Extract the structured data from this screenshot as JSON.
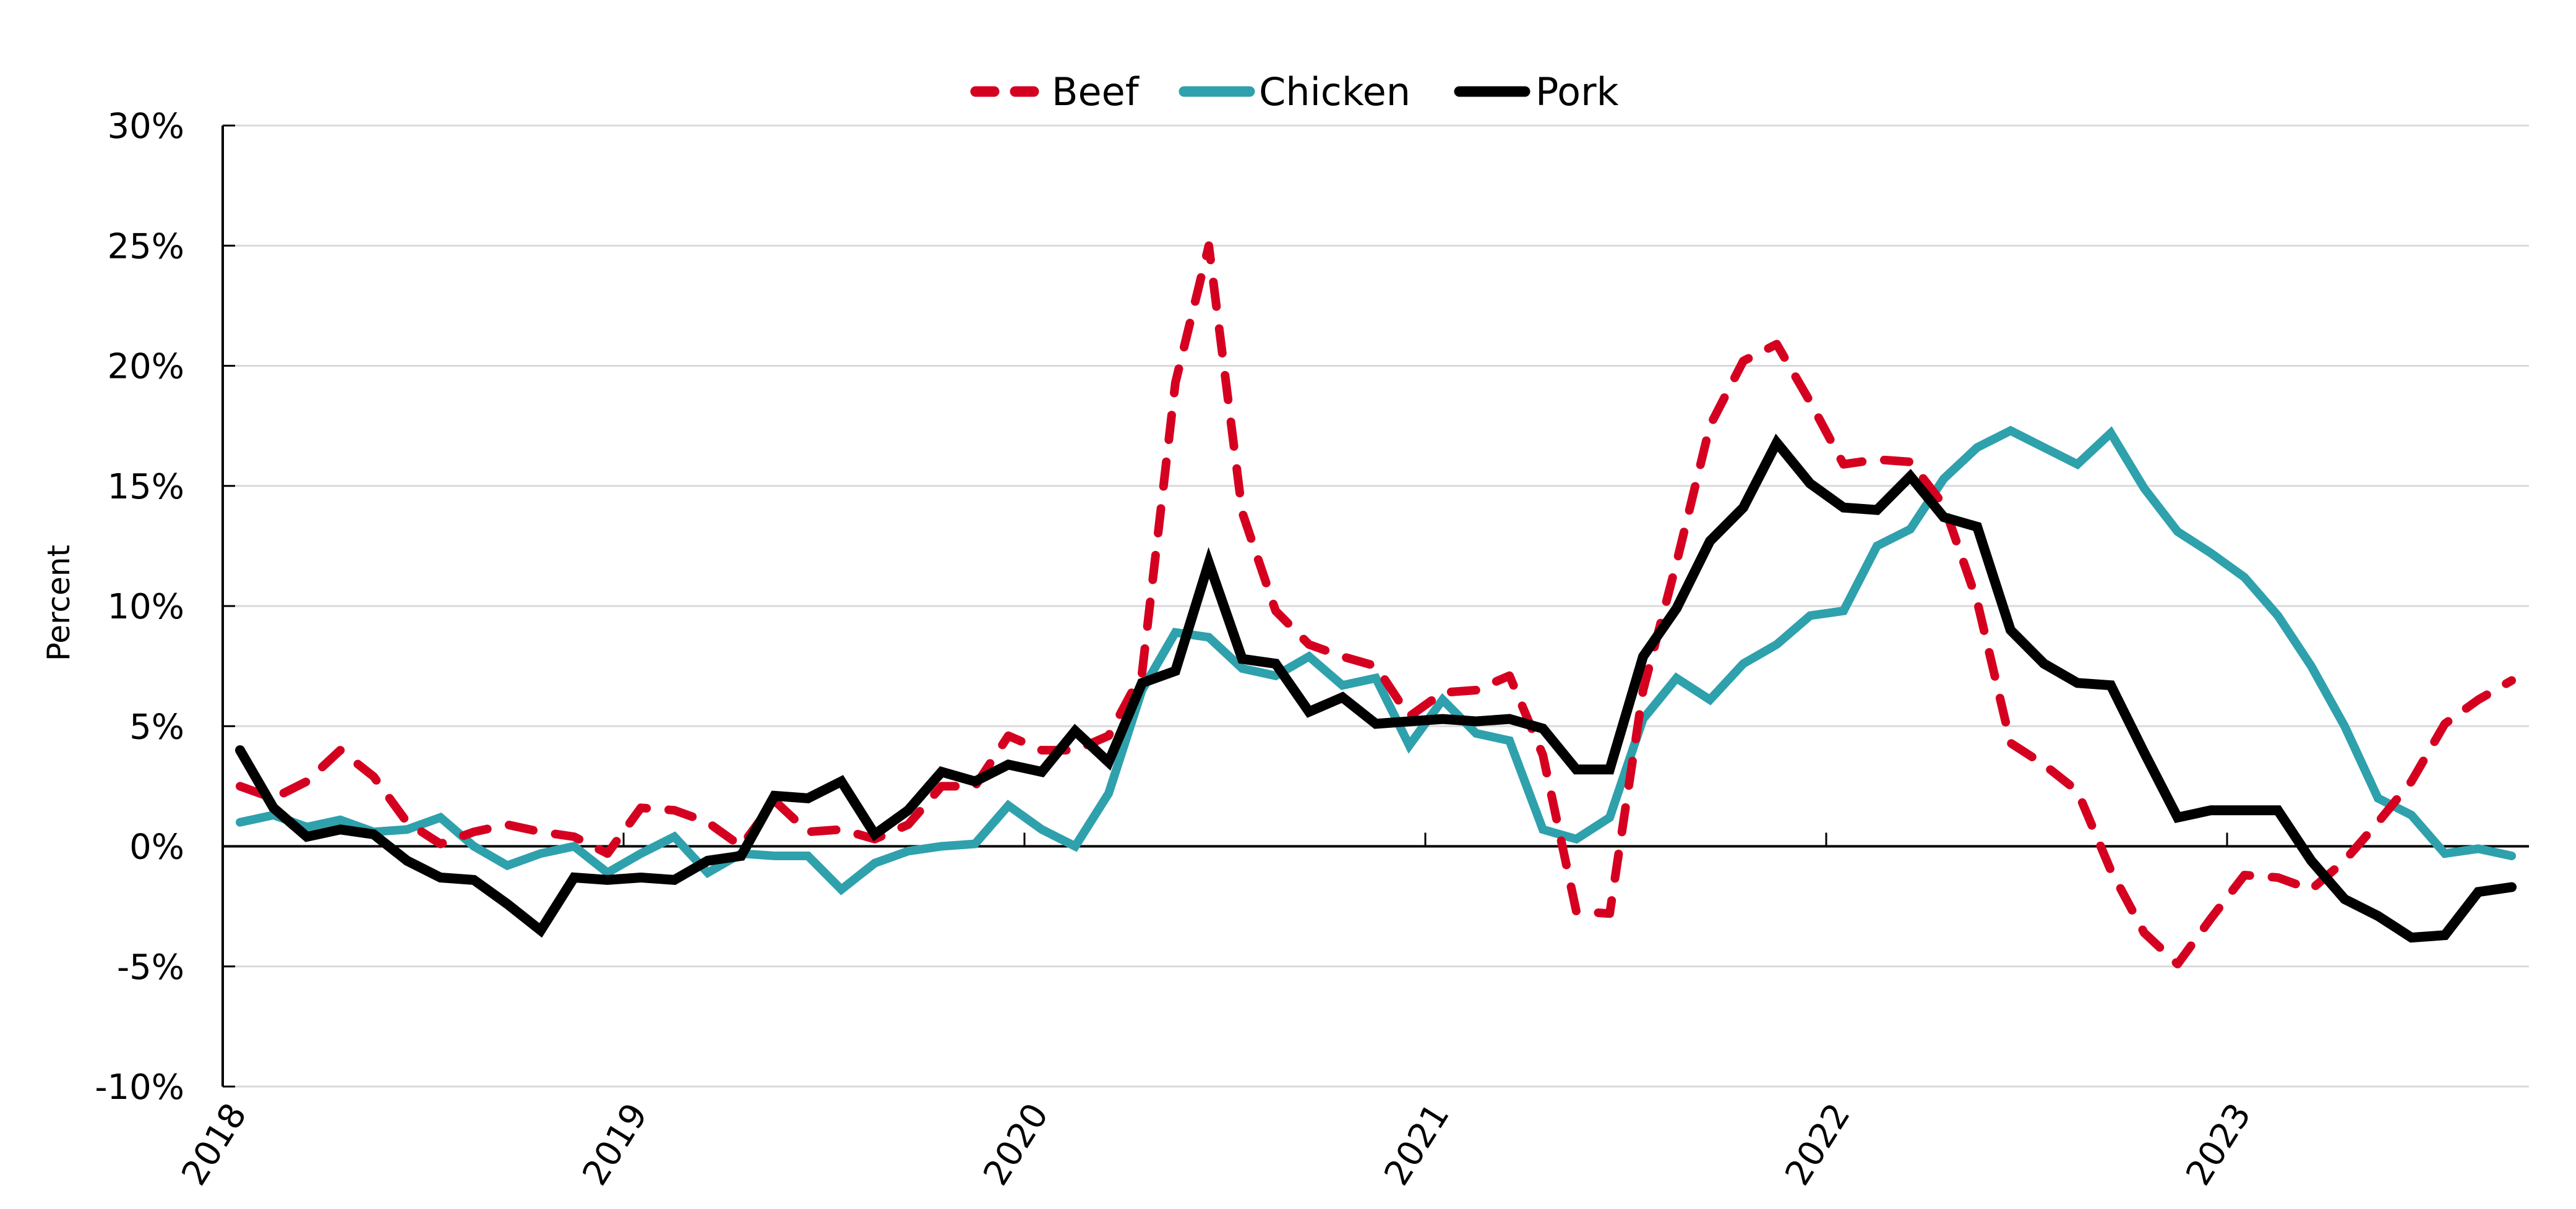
{
  "chart_data": {
    "type": "line",
    "title": "",
    "xlabel": "",
    "ylabel": "Percent",
    "ylim": [
      -10,
      30
    ],
    "yticks": [
      -10,
      -5,
      0,
      5,
      10,
      15,
      20,
      25,
      30
    ],
    "ytick_labels": [
      "-10%",
      "-5%",
      "0%",
      "5%",
      "10%",
      "15%",
      "20%",
      "25%",
      "30%"
    ],
    "xtick_labels": [
      "2018",
      "2019",
      "2020",
      "2021",
      "2022",
      "2023"
    ],
    "x_start": "2018-01",
    "x_end": "2023-09",
    "frequency": "monthly",
    "grid": true,
    "legend_position": "top-center",
    "series": [
      {
        "name": "Beef",
        "color": "#D50020",
        "style": "dashed",
        "values": [
          2.5,
          2.0,
          2.7,
          4.0,
          2.9,
          1.0,
          0.1,
          0.6,
          0.9,
          0.6,
          0.4,
          -0.3,
          1.6,
          1.5,
          1.0,
          0.0,
          1.9,
          0.6,
          0.7,
          0.3,
          0.9,
          2.5,
          2.5,
          4.6,
          4.0,
          4.0,
          4.6,
          7.2,
          19.3,
          25.0,
          13.9,
          9.8,
          8.4,
          7.9,
          7.5,
          5.4,
          6.4,
          6.5,
          7.1,
          3.8,
          -2.7,
          -2.8,
          6.5,
          11.8,
          17.5,
          20.2,
          20.9,
          18.5,
          15.9,
          16.1,
          16.0,
          14.2,
          10.2,
          4.3,
          3.4,
          2.3,
          -1.0,
          -3.6,
          -4.9,
          -3.0,
          -1.2,
          -1.3,
          -1.8,
          -0.6,
          1.0,
          2.7,
          5.1,
          6.1,
          6.9
        ]
      },
      {
        "name": "Chicken",
        "color": "#2EA1AC",
        "style": "solid",
        "values": [
          1.0,
          1.3,
          0.8,
          1.1,
          0.6,
          0.7,
          1.2,
          0.0,
          -0.8,
          -0.3,
          0.0,
          -1.1,
          -0.3,
          0.4,
          -1.1,
          -0.3,
          -0.4,
          -0.4,
          -1.8,
          -0.7,
          -0.2,
          0.0,
          0.1,
          1.7,
          0.7,
          0.0,
          2.2,
          6.5,
          8.9,
          8.7,
          7.4,
          7.1,
          7.9,
          6.7,
          7.0,
          4.2,
          6.1,
          4.7,
          4.4,
          0.7,
          0.3,
          1.2,
          5.3,
          7.0,
          6.1,
          7.6,
          8.4,
          9.6,
          9.8,
          12.5,
          13.2,
          15.3,
          16.6,
          17.3,
          16.6,
          15.9,
          17.2,
          14.9,
          13.1,
          12.2,
          11.2,
          9.6,
          7.5,
          5.0,
          2.0,
          1.3,
          -0.3,
          -0.1,
          -0.4
        ]
      },
      {
        "name": "Pork",
        "color": "#000000",
        "style": "solid",
        "values": [
          4.0,
          1.6,
          0.4,
          0.7,
          0.5,
          -0.6,
          -1.3,
          -1.4,
          -2.4,
          -3.5,
          -1.3,
          -1.4,
          -1.3,
          -1.4,
          -0.6,
          -0.4,
          2.1,
          2.0,
          2.7,
          0.5,
          1.5,
          3.1,
          2.7,
          3.4,
          3.1,
          4.8,
          3.5,
          6.8,
          7.3,
          11.8,
          7.8,
          7.6,
          5.6,
          6.2,
          5.1,
          5.2,
          5.3,
          5.2,
          5.3,
          4.9,
          3.2,
          3.2,
          7.9,
          9.9,
          12.7,
          14.1,
          16.8,
          15.1,
          14.1,
          14.0,
          15.4,
          13.7,
          13.3,
          9.0,
          7.6,
          6.8,
          6.7,
          3.9,
          1.2,
          1.5,
          1.5,
          1.5,
          -0.6,
          -2.2,
          -2.9,
          -3.8,
          -3.7,
          -1.9,
          -1.7
        ]
      }
    ]
  },
  "legend": {
    "items": [
      {
        "label": "Beef",
        "color": "#D50020",
        "style": "dashed"
      },
      {
        "label": "Chicken",
        "color": "#2EA1AC",
        "style": "solid"
      },
      {
        "label": "Pork",
        "color": "#000000",
        "style": "solid"
      }
    ]
  },
  "axes": {
    "ylabel": "Percent",
    "grid_color": "#D9D9D9",
    "axis_color": "#000000"
  }
}
